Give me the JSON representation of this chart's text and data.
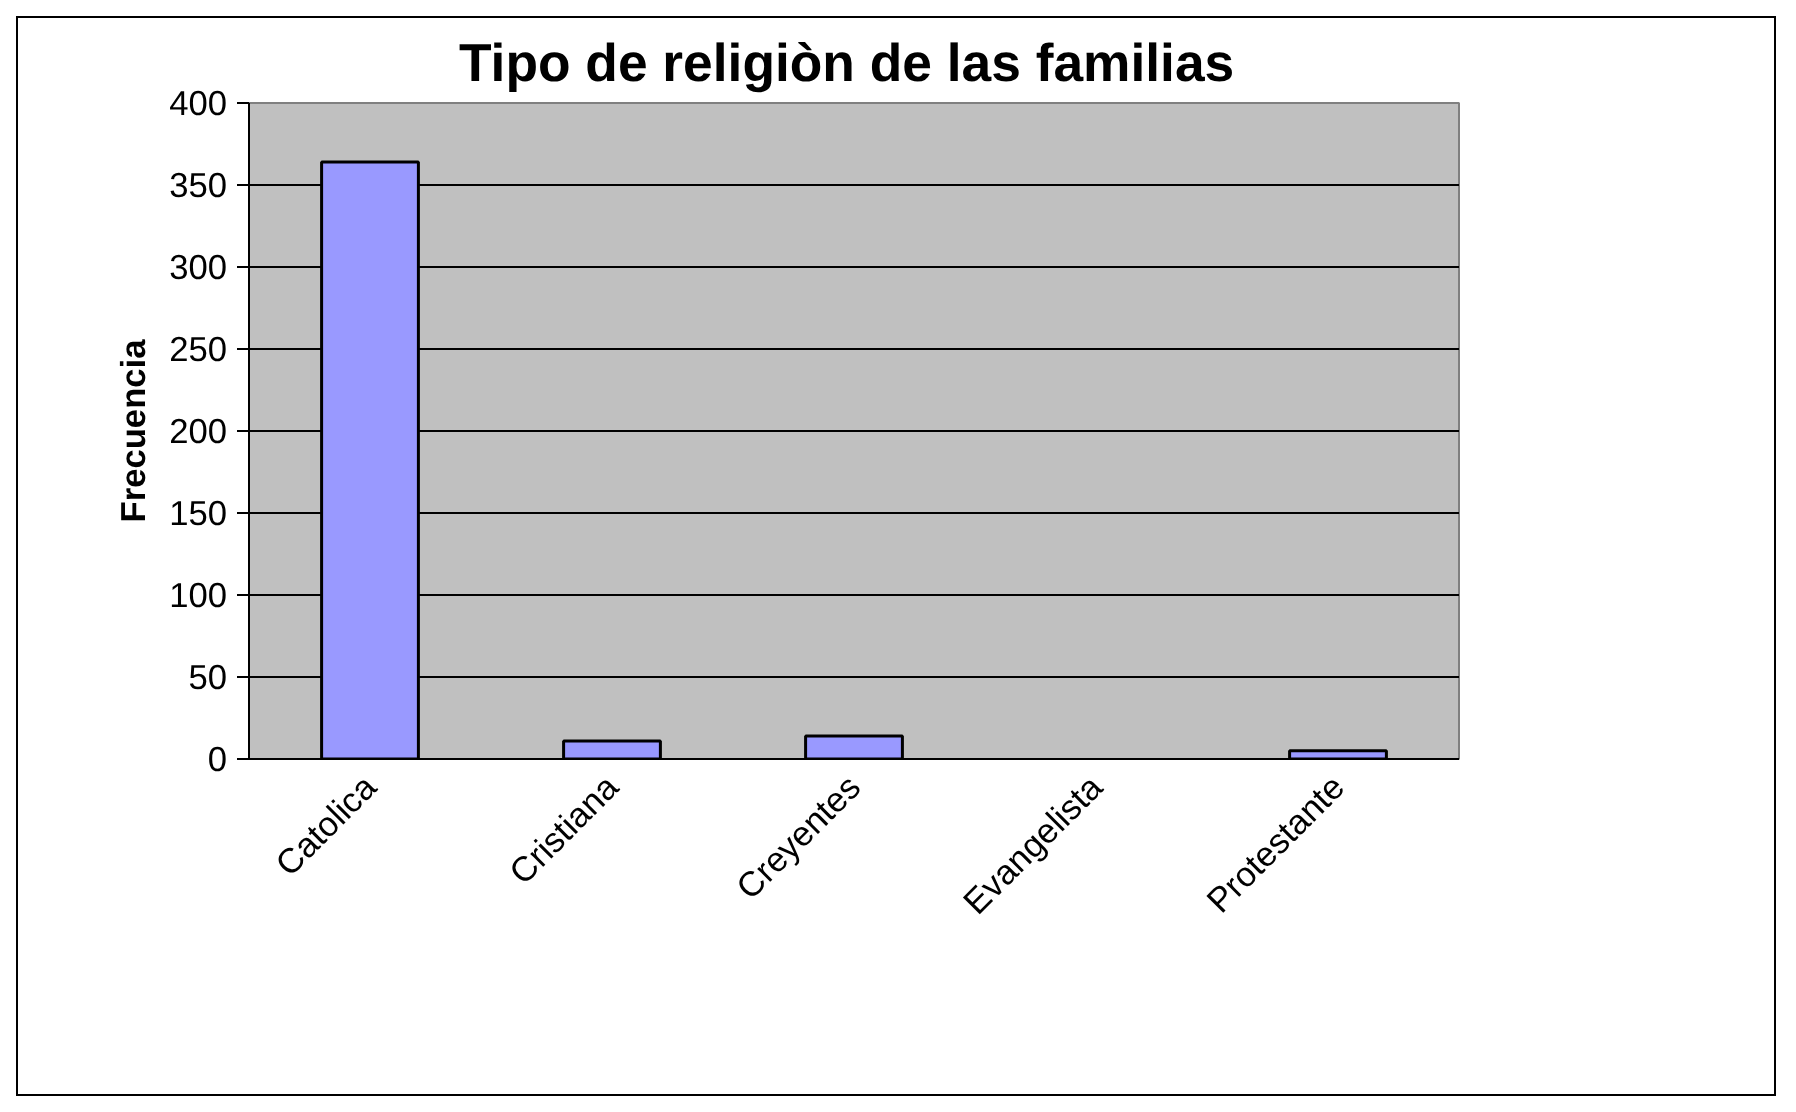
{
  "chart_data": {
    "type": "bar",
    "title": "Tipo de religiòn  de las familias",
    "ylabel": "Frecuencia",
    "categories": [
      "Catolica",
      "Cristiana",
      "Creyentes",
      "Evangelista",
      "Protestante"
    ],
    "values": [
      364,
      11,
      14,
      0,
      5
    ],
    "color": "#9999ff",
    "ylim": [
      0,
      400
    ],
    "yticks": [
      0,
      50,
      100,
      150,
      200,
      250,
      300,
      350,
      400
    ],
    "grid": "y"
  }
}
